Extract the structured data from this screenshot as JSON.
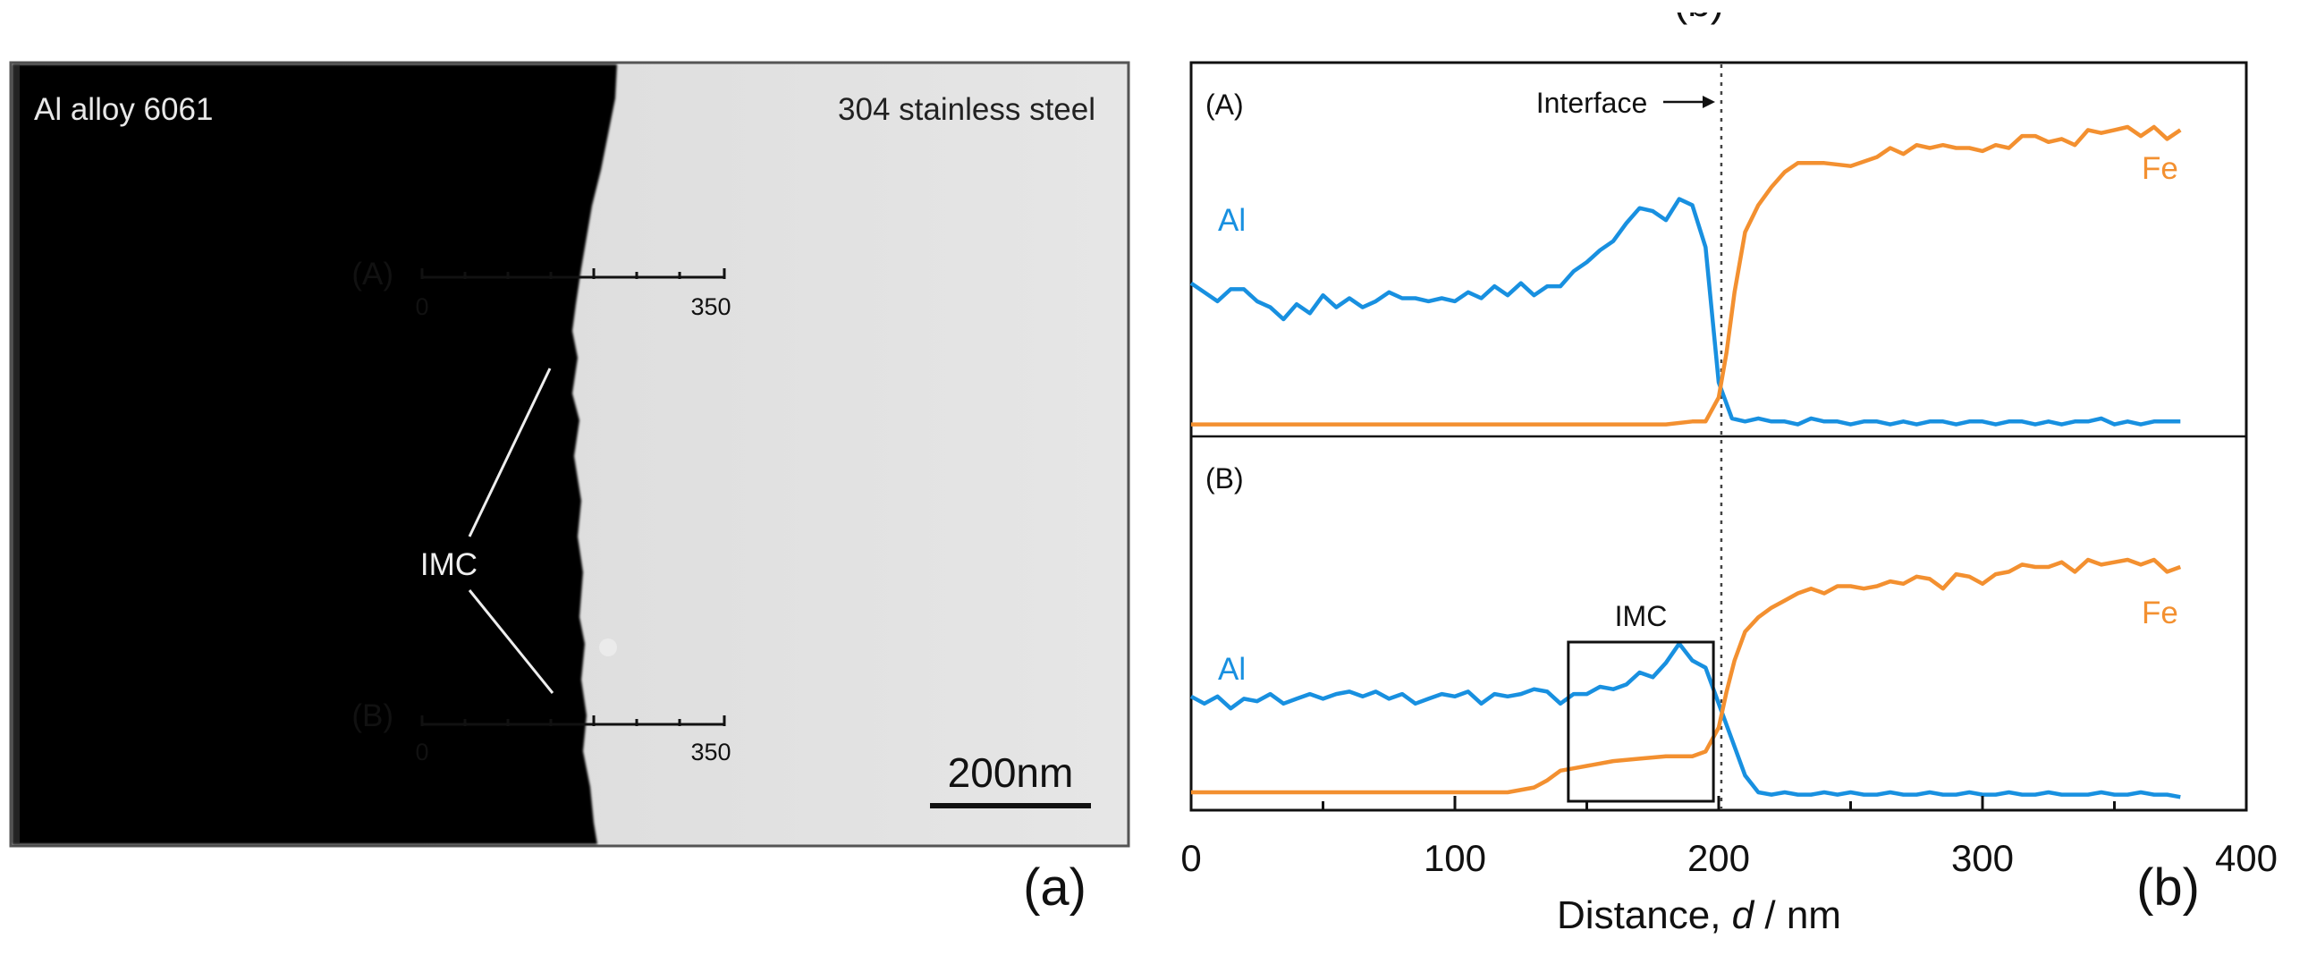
{
  "panel_a": {
    "label": "(a)",
    "left_material": "Al alloy 6061",
    "right_material": "304 stainless steel",
    "imc_label": "IMC",
    "scale_bar": "200nm",
    "lines": [
      {
        "label": "(A)",
        "start": "0",
        "end": "350"
      },
      {
        "label": "(B)",
        "start": "0",
        "end": "350"
      }
    ]
  },
  "panel_b": {
    "label": "(b)",
    "top_partial_label": "(b)",
    "interface_label": "Interface",
    "imc_box_label": "IMC"
  },
  "colors": {
    "al": "#1890e0",
    "fe": "#f39030",
    "aluminum_region": "#545454",
    "steel_region": "#d6d6d6"
  },
  "chart_data": {
    "type": "line",
    "xlabel": "Distance, d / nm",
    "xlim": [
      0,
      400
    ],
    "x_ticks": [
      "0",
      "100",
      "200",
      "300",
      "400"
    ],
    "interface_x": 201,
    "imc_box_x": [
      143,
      198
    ],
    "grid": false,
    "panels": [
      {
        "label": "(A)",
        "series": [
          {
            "name": "Al",
            "x": [
              0,
              5,
              10,
              15,
              20,
              25,
              30,
              35,
              40,
              45,
              50,
              55,
              60,
              65,
              70,
              75,
              80,
              85,
              90,
              95,
              100,
              105,
              110,
              115,
              120,
              125,
              130,
              135,
              140,
              145,
              150,
              155,
              160,
              165,
              170,
              175,
              180,
              185,
              190,
              195,
              200,
              205,
              210,
              215,
              220,
              225,
              230,
              235,
              240,
              245,
              250,
              255,
              260,
              265,
              270,
              275,
              280,
              285,
              290,
              295,
              300,
              305,
              310,
              315,
              320,
              325,
              330,
              335,
              340,
              345,
              350,
              355,
              360,
              365,
              370,
              375
            ],
            "y": [
              0.48,
              0.45,
              0.42,
              0.46,
              0.46,
              0.42,
              0.4,
              0.36,
              0.41,
              0.38,
              0.44,
              0.4,
              0.43,
              0.4,
              0.42,
              0.45,
              0.43,
              0.43,
              0.42,
              0.43,
              0.42,
              0.45,
              0.43,
              0.47,
              0.44,
              0.48,
              0.44,
              0.47,
              0.47,
              0.52,
              0.55,
              0.59,
              0.62,
              0.68,
              0.73,
              0.72,
              0.69,
              0.76,
              0.74,
              0.6,
              0.15,
              0.03,
              0.02,
              0.03,
              0.02,
              0.02,
              0.01,
              0.03,
              0.02,
              0.02,
              0.01,
              0.02,
              0.02,
              0.01,
              0.02,
              0.01,
              0.02,
              0.02,
              0.01,
              0.02,
              0.02,
              0.01,
              0.02,
              0.02,
              0.01,
              0.02,
              0.01,
              0.02,
              0.02,
              0.03,
              0.01,
              0.02,
              0.01,
              0.02,
              0.02,
              0.02
            ]
          },
          {
            "name": "Fe",
            "x": [
              0,
              20,
              40,
              60,
              80,
              100,
              120,
              140,
              160,
              180,
              190,
              195,
              200,
              203,
              206,
              210,
              215,
              220,
              225,
              230,
              240,
              250,
              260,
              265,
              270,
              275,
              280,
              285,
              290,
              295,
              300,
              305,
              310,
              315,
              320,
              325,
              330,
              335,
              340,
              345,
              350,
              355,
              360,
              365,
              370,
              375
            ],
            "y": [
              0.01,
              0.01,
              0.01,
              0.01,
              0.01,
              0.01,
              0.01,
              0.01,
              0.01,
              0.01,
              0.02,
              0.02,
              0.1,
              0.25,
              0.45,
              0.65,
              0.74,
              0.8,
              0.85,
              0.88,
              0.88,
              0.87,
              0.9,
              0.93,
              0.91,
              0.94,
              0.93,
              0.94,
              0.93,
              0.93,
              0.92,
              0.94,
              0.93,
              0.97,
              0.97,
              0.95,
              0.96,
              0.94,
              0.99,
              0.98,
              0.99,
              1.0,
              0.97,
              1.0,
              0.96,
              0.99
            ]
          }
        ]
      },
      {
        "label": "(B)",
        "series": [
          {
            "name": "Al",
            "x": [
              0,
              5,
              10,
              15,
              20,
              25,
              30,
              35,
              40,
              45,
              50,
              55,
              60,
              65,
              70,
              75,
              80,
              85,
              90,
              95,
              100,
              105,
              110,
              115,
              120,
              125,
              130,
              135,
              140,
              145,
              150,
              155,
              160,
              165,
              170,
              175,
              180,
              185,
              190,
              195,
              200,
              205,
              210,
              215,
              220,
              225,
              230,
              235,
              240,
              245,
              250,
              255,
              260,
              265,
              270,
              275,
              280,
              285,
              290,
              295,
              300,
              305,
              310,
              315,
              320,
              325,
              330,
              335,
              340,
              345,
              350,
              355,
              360,
              365,
              370,
              375
            ],
            "y": [
              0.43,
              0.4,
              0.43,
              0.38,
              0.42,
              0.41,
              0.44,
              0.4,
              0.42,
              0.44,
              0.42,
              0.44,
              0.45,
              0.43,
              0.45,
              0.42,
              0.44,
              0.4,
              0.42,
              0.44,
              0.43,
              0.45,
              0.4,
              0.44,
              0.43,
              0.44,
              0.46,
              0.45,
              0.4,
              0.44,
              0.44,
              0.47,
              0.46,
              0.48,
              0.53,
              0.51,
              0.57,
              0.65,
              0.58,
              0.55,
              0.4,
              0.25,
              0.1,
              0.03,
              0.02,
              0.03,
              0.02,
              0.02,
              0.03,
              0.02,
              0.03,
              0.02,
              0.02,
              0.03,
              0.02,
              0.02,
              0.03,
              0.02,
              0.02,
              0.03,
              0.02,
              0.02,
              0.03,
              0.02,
              0.02,
              0.03,
              0.02,
              0.02,
              0.02,
              0.03,
              0.02,
              0.02,
              0.03,
              0.02,
              0.02,
              0.01
            ]
          },
          {
            "name": "Fe",
            "x": [
              0,
              20,
              40,
              60,
              80,
              100,
              120,
              130,
              135,
              140,
              145,
              150,
              160,
              170,
              180,
              190,
              195,
              200,
              203,
              206,
              210,
              215,
              220,
              225,
              230,
              235,
              240,
              245,
              250,
              255,
              260,
              265,
              270,
              275,
              280,
              285,
              290,
              295,
              300,
              305,
              310,
              315,
              320,
              325,
              330,
              335,
              340,
              345,
              350,
              355,
              360,
              365,
              370,
              375
            ],
            "y": [
              0.03,
              0.03,
              0.03,
              0.03,
              0.03,
              0.03,
              0.03,
              0.05,
              0.08,
              0.12,
              0.13,
              0.14,
              0.16,
              0.17,
              0.18,
              0.18,
              0.2,
              0.3,
              0.45,
              0.58,
              0.7,
              0.76,
              0.8,
              0.83,
              0.86,
              0.88,
              0.86,
              0.89,
              0.89,
              0.88,
              0.89,
              0.91,
              0.9,
              0.93,
              0.92,
              0.88,
              0.94,
              0.93,
              0.9,
              0.94,
              0.95,
              0.98,
              0.97,
              0.97,
              0.99,
              0.95,
              1.0,
              0.98,
              0.99,
              1.0,
              0.98,
              1.0,
              0.95,
              0.97
            ]
          }
        ]
      }
    ]
  }
}
